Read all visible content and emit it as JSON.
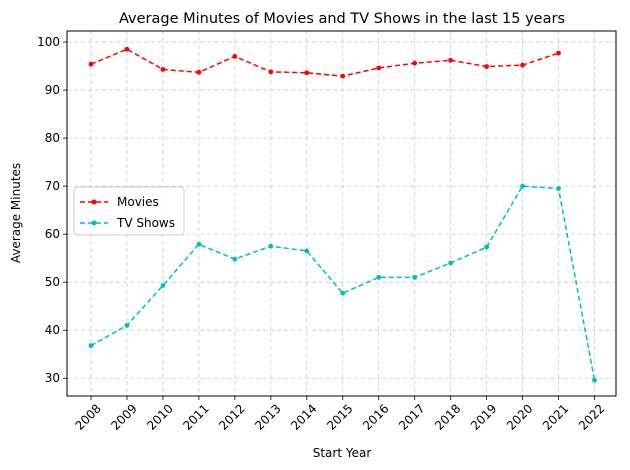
{
  "chart_data": {
    "type": "line",
    "title": "Average Minutes of Movies and TV Shows in the last 15 years",
    "xlabel": "Start Year",
    "ylabel": "Average Minutes",
    "categories": [
      "2008",
      "2009",
      "2010",
      "2011",
      "2012",
      "2013",
      "2014",
      "2015",
      "2016",
      "2017",
      "2018",
      "2019",
      "2020",
      "2021",
      "2022"
    ],
    "ylim": [
      26.3,
      102.3
    ],
    "yticks": [
      30,
      40,
      50,
      60,
      70,
      80,
      90,
      100
    ],
    "grid": true,
    "legend_position": "center-left",
    "series": [
      {
        "name": "Movies",
        "color": "#ff0000",
        "values": [
          95.4,
          98.5,
          94.3,
          93.7,
          97.0,
          93.8,
          93.6,
          92.9,
          94.6,
          95.6,
          96.2,
          94.9,
          95.2,
          97.7,
          null
        ]
      },
      {
        "name": "TV Shows",
        "color": "#00bfbf",
        "values": [
          36.8,
          41.0,
          49.3,
          57.9,
          54.8,
          57.5,
          56.5,
          47.7,
          51.0,
          51.0,
          54.0,
          57.3,
          70.0,
          69.5,
          29.6
        ]
      }
    ]
  }
}
